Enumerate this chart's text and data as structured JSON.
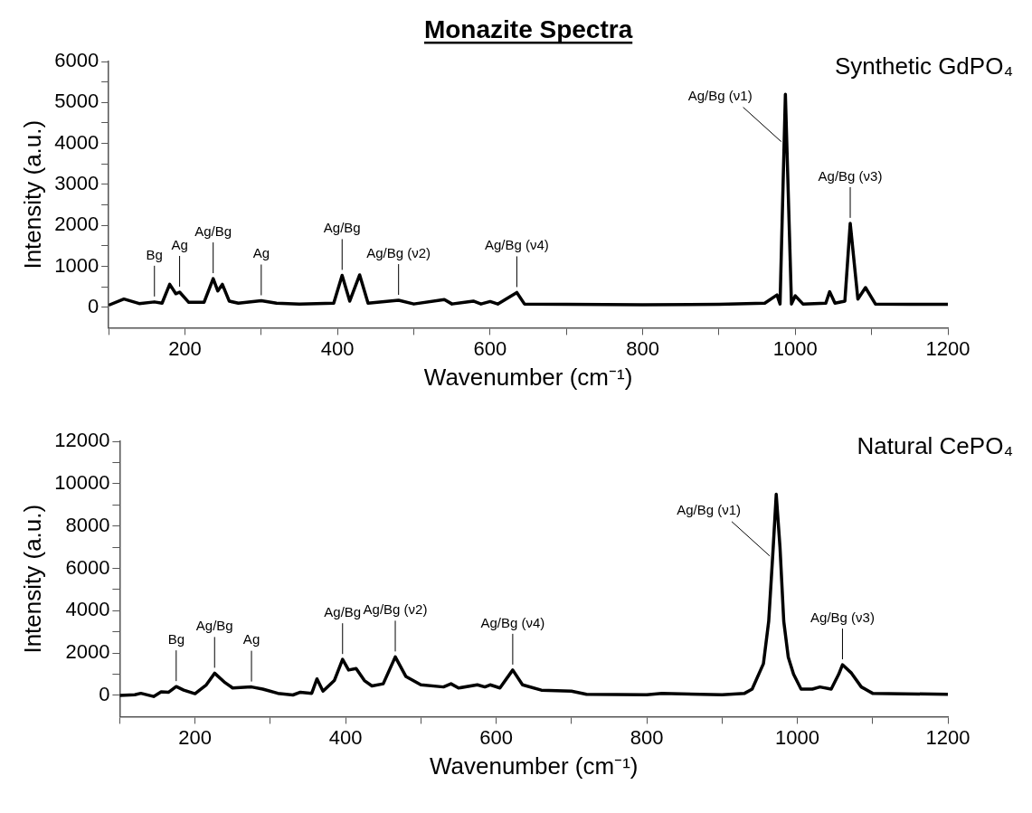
{
  "chart_data": [
    {
      "type": "line",
      "title": "Monazite Spectra",
      "xlabel": "Wavenumber (cm⁻¹)",
      "ylabel": "Intensity (a.u.)",
      "xlim": [
        100,
        1200
      ],
      "xticks": [
        {
          "value": 100,
          "label": null
        },
        200,
        {
          "value": 300,
          "label": null
        },
        400,
        {
          "value": 500,
          "label": null
        },
        600,
        {
          "value": 700,
          "label": null
        },
        800,
        {
          "value": 900,
          "label": null
        },
        1000,
        {
          "value": 1100,
          "label": null
        },
        1200
      ],
      "ylim": [
        -500,
        6000
      ],
      "yticks": [
        0,
        {
          "value": 500,
          "label": null
        },
        1000,
        {
          "value": 1500,
          "label": null
        },
        2000,
        {
          "value": 2500,
          "label": null
        },
        3000,
        {
          "value": 3500,
          "label": null
        },
        4000,
        {
          "value": 4500,
          "label": null
        },
        5000,
        {
          "value": 5500,
          "label": null
        },
        6000
      ],
      "grid": false,
      "series": [
        {
          "name": "Synthetic GdPO₄",
          "color": "#000000",
          "x": [
            100,
            120,
            140,
            160,
            170,
            180,
            188,
            193,
            205,
            225,
            237,
            243,
            249,
            258,
            270,
            300,
            320,
            350,
            395,
            406,
            416,
            429,
            440,
            480,
            500,
            540,
            550,
            578,
            588,
            600,
            610,
            635,
            645,
            700,
            800,
            900,
            960,
            976,
            980,
            987,
            995,
            1000,
            1010,
            1040,
            1045,
            1052,
            1065,
            1072,
            1082,
            1092,
            1105,
            1150,
            1200
          ],
          "values": [
            50,
            200,
            90,
            130,
            100,
            560,
            330,
            370,
            120,
            120,
            700,
            400,
            560,
            150,
            100,
            160,
            100,
            80,
            100,
            780,
            150,
            790,
            100,
            170,
            80,
            190,
            80,
            150,
            80,
            140,
            80,
            360,
            80,
            70,
            60,
            70,
            100,
            300,
            80,
            5200,
            80,
            280,
            80,
            100,
            380,
            100,
            150,
            2050,
            200,
            480,
            80,
            70,
            70
          ]
        }
      ],
      "annotations": [
        {
          "text": "Bg",
          "x": 160,
          "y": 130
        },
        {
          "text": "Ag",
          "x": 193,
          "y": 370
        },
        {
          "text": "Ag/Bg",
          "x": 237,
          "y": 700
        },
        {
          "text": "Ag",
          "x": 300,
          "y": 160
        },
        {
          "text": "Ag/Bg",
          "x": 406,
          "y": 780
        },
        {
          "text": "Ag/Bg (ν2)",
          "x": 480,
          "y": 170
        },
        {
          "text": "Ag/Bg (ν4)",
          "x": 635,
          "y": 360
        },
        {
          "text": "Ag/Bg (ν1)",
          "x": 985,
          "y": 4000
        },
        {
          "text": "Ag/Bg (ν3)",
          "x": 1072,
          "y": 2050
        }
      ]
    },
    {
      "type": "line",
      "xlabel": "Wavenumber (cm⁻¹)",
      "ylabel": "Intensity (a.u.)",
      "xlim": [
        100,
        1200
      ],
      "xticks": [
        {
          "value": 100,
          "label": null
        },
        200,
        {
          "value": 300,
          "label": null
        },
        400,
        {
          "value": 500,
          "label": null
        },
        600,
        {
          "value": 700,
          "label": null
        },
        800,
        {
          "value": 900,
          "label": null
        },
        1000,
        {
          "value": 1100,
          "label": null
        },
        1200
      ],
      "ylim": [
        -1000,
        12000
      ],
      "yticks": [
        0,
        {
          "value": 1000,
          "label": null
        },
        2000,
        {
          "value": 3000,
          "label": null
        },
        4000,
        {
          "value": 5000,
          "label": null
        },
        6000,
        {
          "value": 7000,
          "label": null
        },
        8000,
        {
          "value": 9000,
          "label": null
        },
        10000,
        {
          "value": 11000,
          "label": null
        },
        12000
      ],
      "grid": false,
      "series": [
        {
          "name": "Natural CePO₄",
          "color": "#000000",
          "x": [
            100,
            120,
            128,
            145,
            155,
            165,
            175,
            185,
            200,
            215,
            226,
            240,
            250,
            275,
            290,
            310,
            330,
            340,
            355,
            362,
            370,
            385,
            396,
            404,
            414,
            425,
            435,
            450,
            466,
            480,
            500,
            530,
            540,
            550,
            575,
            585,
            592,
            605,
            622,
            635,
            660,
            700,
            720,
            800,
            820,
            900,
            930,
            940,
            955,
            962,
            968,
            972,
            977,
            982,
            988,
            995,
            1005,
            1020,
            1030,
            1045,
            1055,
            1060,
            1072,
            1085,
            1100,
            1200
          ],
          "values": [
            0,
            30,
            100,
            -50,
            170,
            150,
            420,
            250,
            80,
            500,
            1050,
            600,
            350,
            400,
            300,
            100,
            20,
            150,
            100,
            780,
            200,
            700,
            1700,
            1200,
            1270,
            700,
            450,
            550,
            1820,
            900,
            500,
            400,
            550,
            350,
            500,
            400,
            500,
            350,
            1200,
            500,
            250,
            200,
            50,
            30,
            100,
            30,
            100,
            300,
            1500,
            3500,
            7000,
            9500,
            7000,
            3500,
            1800,
            1000,
            300,
            300,
            400,
            300,
            1000,
            1450,
            1050,
            400,
            100,
            50
          ]
        }
      ],
      "annotations": [
        {
          "text": "Bg",
          "x": 175,
          "y": 420
        },
        {
          "text": "Ag/Bg",
          "x": 226,
          "y": 1050
        },
        {
          "text": "Ag",
          "x": 275,
          "y": 400
        },
        {
          "text": "Ag/Bg",
          "x": 396,
          "y": 1700
        },
        {
          "text": "Ag/Bg (ν2)",
          "x": 466,
          "y": 1820
        },
        {
          "text": "Ag/Bg (ν4)",
          "x": 622,
          "y": 1200
        },
        {
          "text": "Ag/Bg (ν1)",
          "x": 967,
          "y": 6500
        },
        {
          "text": "Ag/Bg (ν3)",
          "x": 1060,
          "y": 1450
        }
      ]
    }
  ]
}
